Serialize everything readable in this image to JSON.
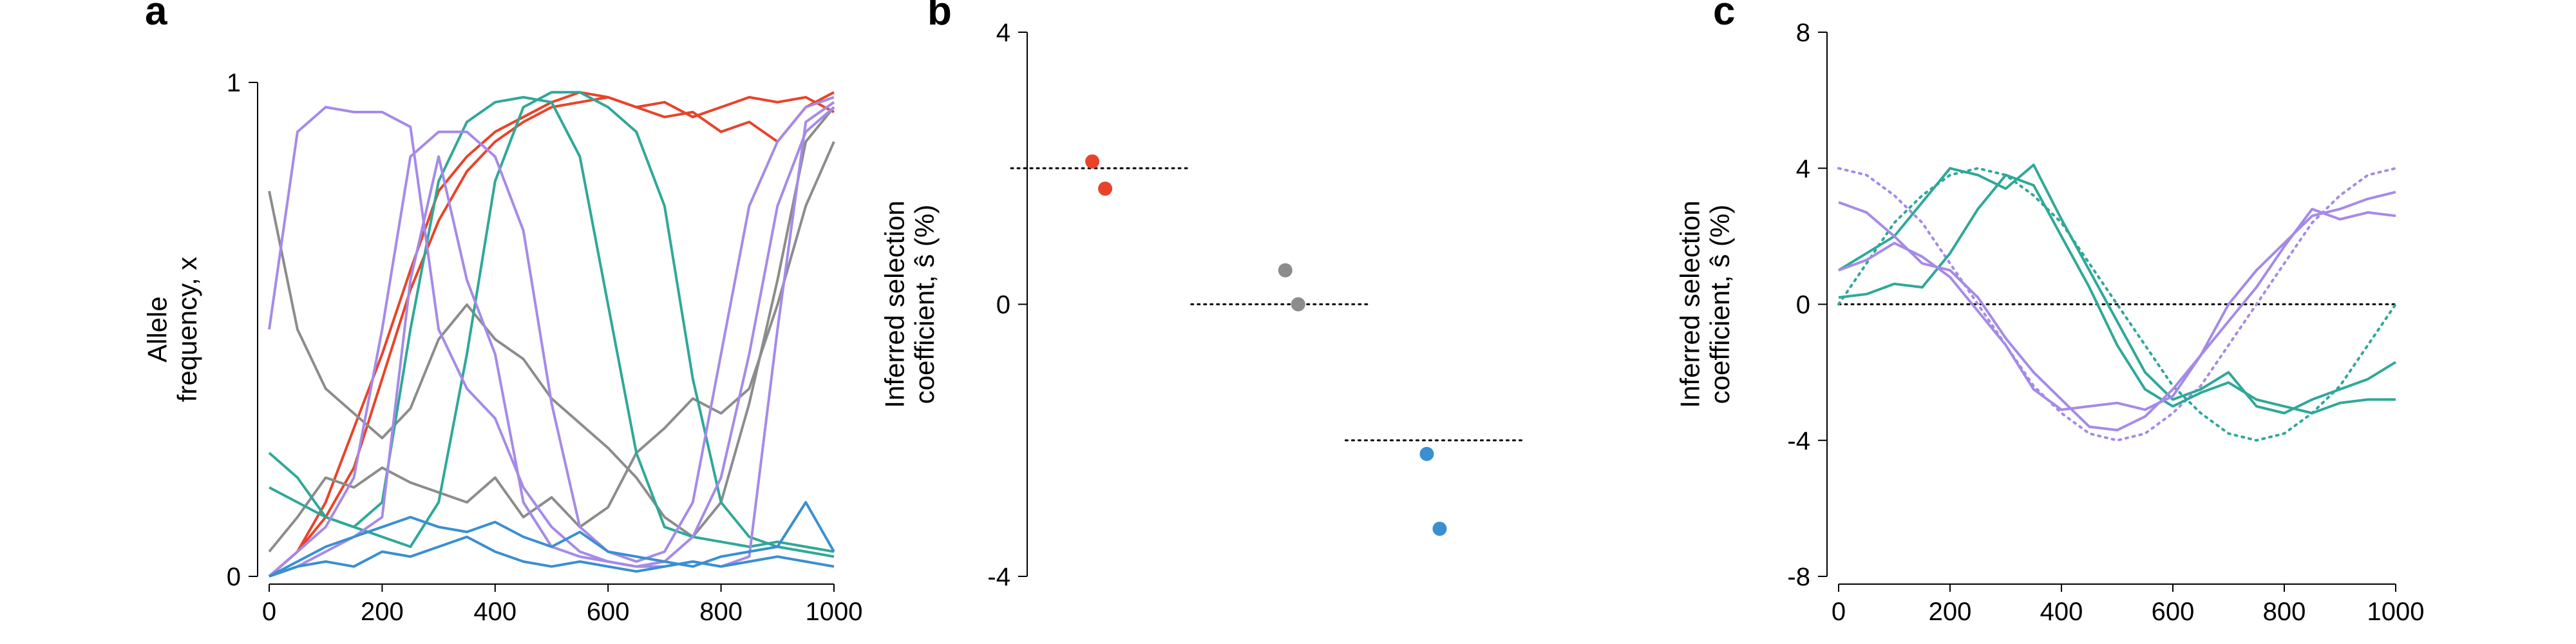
{
  "colors": {
    "red": "#e8432a",
    "gray": "#8c8c8c",
    "teal": "#2fa898",
    "purple": "#a58ae8",
    "blue": "#3a8fd1",
    "reference": "#000000"
  },
  "chart_data": [
    {
      "panel": "a",
      "type": "line",
      "xlabel": "",
      "ylabel": [
        "Allele",
        "frequency, x"
      ],
      "xlim": [
        0,
        1000
      ],
      "ylim": [
        0,
        1
      ],
      "xticks": [
        0,
        200,
        400,
        600,
        800,
        1000
      ],
      "yticks": [
        0,
        1
      ],
      "grid": false,
      "legend": "none",
      "series": [
        {
          "color": "red",
          "x": [
            0,
            50,
            100,
            150,
            200,
            250,
            300,
            350,
            400,
            450,
            500,
            550,
            600,
            650,
            700,
            750,
            800,
            850,
            900,
            950,
            1000
          ],
          "y": [
            0,
            0.05,
            0.15,
            0.3,
            0.45,
            0.62,
            0.78,
            0.85,
            0.9,
            0.93,
            0.96,
            0.98,
            0.97,
            0.95,
            0.96,
            0.93,
            0.95,
            0.97,
            0.96,
            0.97,
            0.94
          ]
        },
        {
          "color": "red",
          "x": [
            0,
            50,
            100,
            150,
            200,
            250,
            300,
            350,
            400,
            450,
            500,
            550,
            600,
            650,
            700,
            750,
            800,
            850,
            900,
            950,
            1000
          ],
          "y": [
            0,
            0.05,
            0.12,
            0.22,
            0.4,
            0.58,
            0.72,
            0.82,
            0.88,
            0.92,
            0.95,
            0.96,
            0.97,
            0.95,
            0.93,
            0.94,
            0.9,
            0.92,
            0.88,
            0.95,
            0.98
          ]
        },
        {
          "color": "gray",
          "x": [
            0,
            50,
            100,
            150,
            200,
            250,
            300,
            350,
            400,
            450,
            500,
            550,
            600,
            650,
            700,
            750,
            800,
            850,
            900,
            950,
            1000
          ],
          "y": [
            0.78,
            0.5,
            0.38,
            0.33,
            0.28,
            0.34,
            0.48,
            0.55,
            0.48,
            0.44,
            0.36,
            0.31,
            0.26,
            0.2,
            0.12,
            0.08,
            0.15,
            0.35,
            0.6,
            0.88,
            0.95
          ]
        },
        {
          "color": "gray",
          "x": [
            0,
            50,
            100,
            150,
            200,
            250,
            300,
            350,
            400,
            450,
            500,
            550,
            600,
            650,
            700,
            750,
            800,
            850,
            900,
            950,
            1000
          ],
          "y": [
            0.05,
            0.12,
            0.2,
            0.18,
            0.22,
            0.19,
            0.17,
            0.15,
            0.2,
            0.12,
            0.16,
            0.1,
            0.14,
            0.25,
            0.3,
            0.36,
            0.33,
            0.38,
            0.55,
            0.75,
            0.88
          ]
        },
        {
          "color": "teal",
          "x": [
            0,
            50,
            100,
            150,
            200,
            250,
            300,
            350,
            400,
            450,
            500,
            550,
            600,
            650,
            700,
            750,
            800,
            850,
            900,
            950,
            1000
          ],
          "y": [
            0.25,
            0.2,
            0.12,
            0.1,
            0.15,
            0.5,
            0.8,
            0.92,
            0.96,
            0.97,
            0.96,
            0.85,
            0.55,
            0.25,
            0.1,
            0.08,
            0.07,
            0.06,
            0.07,
            0.06,
            0.05
          ]
        },
        {
          "color": "teal",
          "x": [
            0,
            50,
            100,
            150,
            200,
            250,
            300,
            350,
            400,
            450,
            500,
            550,
            600,
            650,
            700,
            750,
            800,
            850,
            900,
            950,
            1000
          ],
          "y": [
            0.18,
            0.15,
            0.12,
            0.1,
            0.08,
            0.06,
            0.15,
            0.45,
            0.8,
            0.95,
            0.98,
            0.98,
            0.95,
            0.9,
            0.75,
            0.4,
            0.15,
            0.08,
            0.06,
            0.05,
            0.04
          ]
        },
        {
          "color": "purple",
          "x": [
            0,
            50,
            100,
            150,
            200,
            250,
            300,
            350,
            400,
            450,
            500,
            550,
            600,
            650,
            700,
            750,
            800,
            850,
            900,
            950,
            1000
          ],
          "y": [
            0.5,
            0.9,
            0.95,
            0.94,
            0.94,
            0.91,
            0.5,
            0.38,
            0.32,
            0.18,
            0.1,
            0.05,
            0.03,
            0.02,
            0.02,
            0.03,
            0.02,
            0.04,
            0.5,
            0.92,
            0.96
          ]
        },
        {
          "color": "purple",
          "x": [
            0,
            50,
            100,
            150,
            200,
            250,
            300,
            350,
            400,
            450,
            500,
            550,
            600,
            650,
            700,
            750,
            800,
            850,
            900,
            950,
            1000
          ],
          "y": [
            0,
            0.05,
            0.1,
            0.2,
            0.5,
            0.85,
            0.9,
            0.9,
            0.85,
            0.7,
            0.35,
            0.1,
            0.05,
            0.03,
            0.05,
            0.15,
            0.45,
            0.75,
            0.88,
            0.95,
            0.97
          ]
        },
        {
          "color": "purple",
          "x": [
            0,
            50,
            100,
            150,
            200,
            250,
            300,
            350,
            400,
            450,
            500,
            550,
            600,
            650,
            700,
            750,
            800,
            850,
            900,
            950,
            1000
          ],
          "y": [
            0,
            0.02,
            0.05,
            0.08,
            0.12,
            0.6,
            0.85,
            0.6,
            0.45,
            0.15,
            0.06,
            0.04,
            0.03,
            0.02,
            0.03,
            0.08,
            0.2,
            0.45,
            0.75,
            0.9,
            0.95
          ]
        },
        {
          "color": "blue",
          "x": [
            0,
            50,
            100,
            150,
            200,
            250,
            300,
            350,
            400,
            450,
            500,
            550,
            600,
            650,
            700,
            750,
            800,
            850,
            900,
            950,
            1000
          ],
          "y": [
            0,
            0.03,
            0.06,
            0.08,
            0.1,
            0.12,
            0.1,
            0.09,
            0.11,
            0.08,
            0.06,
            0.09,
            0.05,
            0.04,
            0.03,
            0.02,
            0.04,
            0.05,
            0.06,
            0.15,
            0.05
          ]
        },
        {
          "color": "blue",
          "x": [
            0,
            50,
            100,
            150,
            200,
            250,
            300,
            350,
            400,
            450,
            500,
            550,
            600,
            650,
            700,
            750,
            800,
            850,
            900,
            950,
            1000
          ],
          "y": [
            0,
            0.02,
            0.03,
            0.02,
            0.05,
            0.04,
            0.06,
            0.08,
            0.05,
            0.03,
            0.02,
            0.03,
            0.02,
            0.01,
            0.02,
            0.03,
            0.02,
            0.03,
            0.04,
            0.03,
            0.02
          ]
        }
      ]
    },
    {
      "panel": "b",
      "type": "scatter",
      "ylabel": [
        "Inferred selection",
        "coefficient, ŝ (%)"
      ],
      "ylim": [
        -4,
        4
      ],
      "yticks": [
        -4,
        0,
        4
      ],
      "groups": [
        {
          "color": "red",
          "true_value": 2,
          "points": [
            2.1,
            1.7
          ]
        },
        {
          "color": "gray",
          "true_value": 0,
          "points": [
            0.5,
            0.0
          ]
        },
        {
          "color": "blue",
          "true_value": -2,
          "points": [
            -2.2,
            -3.3
          ]
        }
      ]
    },
    {
      "panel": "c",
      "type": "line",
      "ylabel": [
        "Inferred selection",
        "coefficient, ŝ (%)"
      ],
      "xlim": [
        0,
        1000
      ],
      "ylim": [
        -8,
        8
      ],
      "xticks": [
        0,
        200,
        400,
        600,
        800,
        1000
      ],
      "yticks": [
        -8,
        -4,
        0,
        4,
        8
      ],
      "reference_line": 0,
      "true_curves": [
        {
          "color": "purple",
          "style": "dotted",
          "x": [
            0,
            50,
            100,
            150,
            200,
            250,
            300,
            350,
            400,
            450,
            500,
            550,
            600,
            650,
            700,
            750,
            800,
            850,
            900,
            950,
            1000
          ],
          "y": [
            4,
            3.8,
            3.2,
            2.4,
            1.2,
            0,
            -1.2,
            -2.4,
            -3.2,
            -3.8,
            -4,
            -3.8,
            -3.2,
            -2.4,
            -1.2,
            0,
            1.2,
            2.4,
            3.2,
            3.8,
            4
          ]
        },
        {
          "color": "teal",
          "style": "dotted",
          "x": [
            0,
            50,
            100,
            150,
            200,
            250,
            300,
            350,
            400,
            450,
            500,
            550,
            600,
            650,
            700,
            750,
            800,
            850,
            900,
            950,
            1000
          ],
          "y": [
            0,
            1.2,
            2.4,
            3.2,
            3.8,
            4,
            3.8,
            3.2,
            2.4,
            1.2,
            0,
            -1.2,
            -2.4,
            -3.2,
            -3.8,
            -4,
            -3.8,
            -3.2,
            -2.4,
            -1.2,
            0
          ]
        }
      ],
      "series": [
        {
          "color": "teal",
          "x": [
            0,
            50,
            100,
            150,
            200,
            250,
            300,
            350,
            400,
            450,
            500,
            550,
            600,
            650,
            700,
            750,
            800,
            850,
            900,
            950,
            1000
          ],
          "y": [
            1,
            1.5,
            2,
            3,
            4,
            3.8,
            3.4,
            4.1,
            2.5,
            1,
            -0.5,
            -2,
            -2.8,
            -2.5,
            -2,
            -3,
            -3.2,
            -2.8,
            -2.5,
            -2.2,
            -1.7
          ]
        },
        {
          "color": "teal",
          "x": [
            0,
            50,
            100,
            150,
            200,
            250,
            300,
            350,
            400,
            450,
            500,
            550,
            600,
            650,
            700,
            750,
            800,
            850,
            900,
            950,
            1000
          ],
          "y": [
            0.2,
            0.3,
            0.6,
            0.5,
            1.5,
            2.8,
            3.8,
            3.5,
            2,
            0.5,
            -1.2,
            -2.5,
            -3,
            -2.6,
            -2.3,
            -2.8,
            -3,
            -3.2,
            -2.9,
            -2.8,
            -2.8
          ]
        },
        {
          "color": "purple",
          "x": [
            0,
            50,
            100,
            150,
            200,
            250,
            300,
            350,
            400,
            450,
            500,
            550,
            600,
            650,
            700,
            750,
            800,
            850,
            900,
            950,
            1000
          ],
          "y": [
            3,
            2.7,
            2,
            1.2,
            1,
            0.2,
            -1,
            -2,
            -2.8,
            -3.6,
            -3.7,
            -3.3,
            -2.5,
            -1.5,
            0,
            1,
            1.8,
            2.6,
            2.8,
            3.1,
            3.3
          ]
        },
        {
          "color": "purple",
          "x": [
            0,
            50,
            100,
            150,
            200,
            250,
            300,
            350,
            400,
            450,
            500,
            550,
            600,
            650,
            700,
            750,
            800,
            850,
            900,
            950,
            1000
          ],
          "y": [
            1,
            1.3,
            1.8,
            1.4,
            0.8,
            -0.2,
            -1.2,
            -2.5,
            -3.1,
            -3,
            -2.9,
            -3.1,
            -2.7,
            -1.5,
            -0.5,
            0.5,
            1.7,
            2.8,
            2.5,
            2.7,
            2.6
          ]
        }
      ]
    }
  ]
}
